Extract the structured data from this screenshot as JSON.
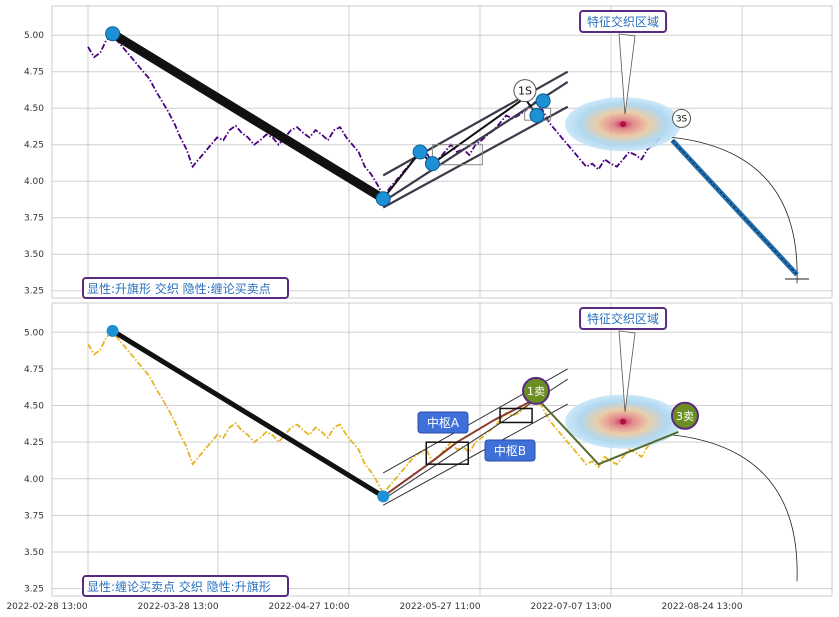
{
  "chart_data": [
    {
      "type": "line",
      "panel": "top",
      "series": [
        {
          "values": [
            [
              0,
              4.92
            ],
            [
              1,
              4.85
            ],
            [
              2,
              4.88
            ],
            [
              3,
              4.97
            ],
            [
              4,
              5.0
            ],
            [
              5,
              4.95
            ],
            [
              6,
              4.9
            ],
            [
              7,
              4.85
            ],
            [
              8,
              4.8
            ],
            [
              9,
              4.75
            ],
            [
              10,
              4.7
            ],
            [
              11,
              4.62
            ],
            [
              12,
              4.55
            ],
            [
              13,
              4.48
            ],
            [
              14,
              4.4
            ],
            [
              15,
              4.3
            ],
            [
              16,
              4.22
            ],
            [
              17,
              4.1
            ],
            [
              18,
              4.15
            ],
            [
              19,
              4.2
            ],
            [
              20,
              4.25
            ],
            [
              21,
              4.3
            ],
            [
              22,
              4.28
            ],
            [
              23,
              4.35
            ],
            [
              24,
              4.38
            ],
            [
              25,
              4.33
            ],
            [
              26,
              4.3
            ],
            [
              27,
              4.25
            ],
            [
              28,
              4.28
            ],
            [
              29,
              4.32
            ],
            [
              30,
              4.3
            ],
            [
              31,
              4.25
            ],
            [
              32,
              4.3
            ],
            [
              33,
              4.35
            ],
            [
              34,
              4.37
            ],
            [
              35,
              4.33
            ],
            [
              36,
              4.3
            ],
            [
              37,
              4.35
            ],
            [
              38,
              4.32
            ],
            [
              39,
              4.28
            ],
            [
              40,
              4.35
            ],
            [
              41,
              4.37
            ],
            [
              42,
              4.3
            ],
            [
              43,
              4.25
            ],
            [
              44,
              4.2
            ],
            [
              45,
              4.1
            ],
            [
              46,
              4.05
            ],
            [
              47,
              3.98
            ],
            [
              48,
              3.9
            ],
            [
              49,
              3.95
            ],
            [
              50,
              4.0
            ],
            [
              51,
              4.05
            ],
            [
              52,
              4.1
            ],
            [
              53,
              4.15
            ],
            [
              54,
              4.18
            ],
            [
              55,
              4.2
            ],
            [
              56,
              4.12
            ],
            [
              57,
              4.15
            ],
            [
              58,
              4.2
            ],
            [
              59,
              4.25
            ],
            [
              60,
              4.2
            ],
            [
              61,
              4.22
            ],
            [
              62,
              4.18
            ],
            [
              63,
              4.25
            ],
            [
              64,
              4.28
            ],
            [
              65,
              4.32
            ],
            [
              66,
              4.35
            ],
            [
              67,
              4.4
            ],
            [
              68,
              4.45
            ],
            [
              69,
              4.43
            ],
            [
              70,
              4.45
            ],
            [
              71,
              4.48
            ],
            [
              72,
              4.52
            ],
            [
              73,
              4.55
            ],
            [
              74,
              4.48
            ],
            [
              75,
              4.4
            ],
            [
              76,
              4.35
            ],
            [
              77,
              4.3
            ],
            [
              78,
              4.25
            ],
            [
              79,
              4.2
            ],
            [
              80,
              4.15
            ],
            [
              81,
              4.1
            ],
            [
              82,
              4.12
            ],
            [
              83,
              4.08
            ],
            [
              84,
              4.15
            ],
            [
              85,
              4.12
            ],
            [
              86,
              4.1
            ],
            [
              87,
              4.15
            ],
            [
              88,
              4.2
            ],
            [
              89,
              4.18
            ],
            [
              90,
              4.15
            ],
            [
              91,
              4.22
            ],
            [
              92,
              4.25
            ],
            [
              93,
              4.3
            ]
          ],
          "color": "#4b0082",
          "style": "dash-dot"
        }
      ],
      "annotations": {
        "zigzag": [
          [
            4,
            5.0
          ],
          [
            48,
            3.88
          ],
          [
            54,
            4.2
          ],
          [
            56,
            4.12
          ],
          [
            71,
            4.57
          ],
          [
            73,
            4.45
          ],
          [
            74,
            4.55
          ]
        ],
        "markers": [
          [
            4,
            5.01
          ],
          [
            48,
            3.88
          ],
          [
            54,
            4.2
          ],
          [
            56,
            4.12
          ],
          [
            73,
            4.45
          ],
          [
            74,
            4.55
          ]
        ],
        "label_1S": "1S",
        "label_3S": "3S",
        "feature_label": "特征交织区域",
        "corner_label": "显性:升旗形 交织 隐性:缠论买卖点"
      },
      "ylim": [
        3.2,
        5.2
      ],
      "yticks": [
        "5.00",
        "4.75",
        "4.50",
        "4.25",
        "4.00",
        "3.75",
        "3.50",
        "3.25"
      ],
      "grid": true
    },
    {
      "type": "line",
      "panel": "bottom",
      "series": [
        {
          "values": [
            [
              0,
              4.92
            ],
            [
              1,
              4.85
            ],
            [
              2,
              4.88
            ],
            [
              3,
              4.97
            ],
            [
              4,
              5.0
            ],
            [
              5,
              4.95
            ],
            [
              6,
              4.9
            ],
            [
              7,
              4.85
            ],
            [
              8,
              4.8
            ],
            [
              9,
              4.75
            ],
            [
              10,
              4.7
            ],
            [
              11,
              4.62
            ],
            [
              12,
              4.55
            ],
            [
              13,
              4.48
            ],
            [
              14,
              4.4
            ],
            [
              15,
              4.3
            ],
            [
              16,
              4.22
            ],
            [
              17,
              4.1
            ],
            [
              18,
              4.15
            ],
            [
              19,
              4.2
            ],
            [
              20,
              4.25
            ],
            [
              21,
              4.3
            ],
            [
              22,
              4.28
            ],
            [
              23,
              4.35
            ],
            [
              24,
              4.38
            ],
            [
              25,
              4.33
            ],
            [
              26,
              4.3
            ],
            [
              27,
              4.25
            ],
            [
              28,
              4.28
            ],
            [
              29,
              4.32
            ],
            [
              30,
              4.3
            ],
            [
              31,
              4.25
            ],
            [
              32,
              4.3
            ],
            [
              33,
              4.35
            ],
            [
              34,
              4.37
            ],
            [
              35,
              4.33
            ],
            [
              36,
              4.3
            ],
            [
              37,
              4.35
            ],
            [
              38,
              4.32
            ],
            [
              39,
              4.28
            ],
            [
              40,
              4.35
            ],
            [
              41,
              4.37
            ],
            [
              42,
              4.3
            ],
            [
              43,
              4.25
            ],
            [
              44,
              4.2
            ],
            [
              45,
              4.1
            ],
            [
              46,
              4.05
            ],
            [
              47,
              3.98
            ],
            [
              48,
              3.9
            ],
            [
              49,
              3.95
            ],
            [
              50,
              4.0
            ],
            [
              51,
              4.05
            ],
            [
              52,
              4.1
            ],
            [
              53,
              4.15
            ],
            [
              54,
              4.18
            ],
            [
              55,
              4.2
            ],
            [
              56,
              4.12
            ],
            [
              57,
              4.15
            ],
            [
              58,
              4.2
            ],
            [
              59,
              4.25
            ],
            [
              60,
              4.2
            ],
            [
              61,
              4.22
            ],
            [
              62,
              4.18
            ],
            [
              63,
              4.25
            ],
            [
              64,
              4.28
            ],
            [
              65,
              4.32
            ],
            [
              66,
              4.35
            ],
            [
              67,
              4.4
            ],
            [
              68,
              4.45
            ],
            [
              69,
              4.43
            ],
            [
              70,
              4.45
            ],
            [
              71,
              4.48
            ],
            [
              72,
              4.52
            ],
            [
              73,
              4.55
            ],
            [
              74,
              4.48
            ],
            [
              75,
              4.4
            ],
            [
              76,
              4.35
            ],
            [
              77,
              4.3
            ],
            [
              78,
              4.25
            ],
            [
              79,
              4.2
            ],
            [
              80,
              4.15
            ],
            [
              81,
              4.1
            ],
            [
              82,
              4.12
            ],
            [
              83,
              4.08
            ],
            [
              84,
              4.15
            ],
            [
              85,
              4.12
            ],
            [
              86,
              4.1
            ],
            [
              87,
              4.15
            ],
            [
              88,
              4.2
            ],
            [
              89,
              4.18
            ],
            [
              90,
              4.15
            ],
            [
              91,
              4.22
            ],
            [
              92,
              4.25
            ],
            [
              93,
              4.3
            ]
          ],
          "color": "#e6b422",
          "style": "dash-dot"
        }
      ],
      "annotations": {
        "sell1": "1卖",
        "sell3": "3卖",
        "center_a": "中枢A",
        "center_b": "中枢B",
        "feature_label": "特征交织区域",
        "corner_label": "显性:缠论买卖点 交织 隐性:升旗形"
      },
      "ylim": [
        3.2,
        5.2
      ],
      "yticks": [
        "5.00",
        "4.75",
        "4.50",
        "4.25",
        "4.00",
        "3.75",
        "3.50",
        "3.25"
      ],
      "grid": true
    }
  ],
  "xticks": [
    "2022-02-28 13:00",
    "2022-03-28 13:00",
    "2022-04-27 10:00",
    "2022-05-27 11:00",
    "2022-07-07 13:00",
    "2022-08-24 13:00"
  ]
}
